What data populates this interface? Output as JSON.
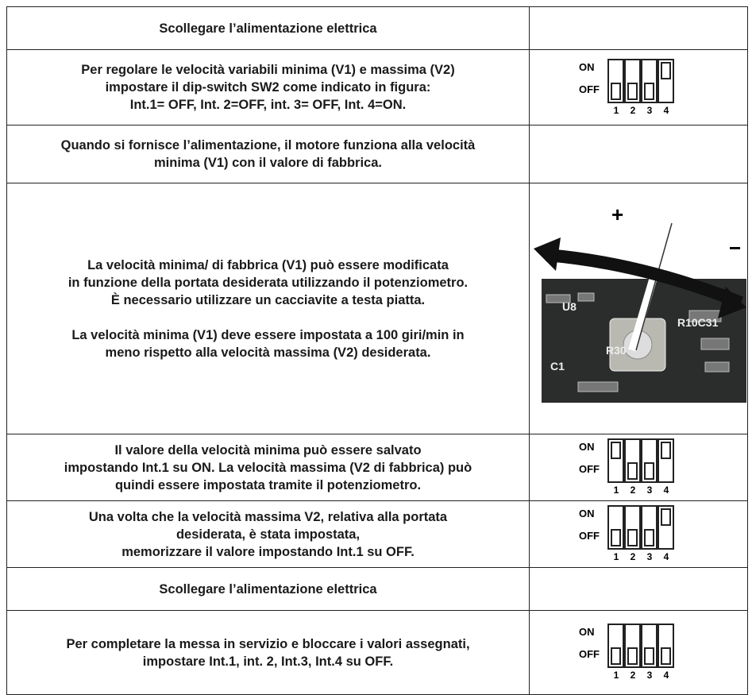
{
  "table": {
    "rows": [
      {
        "text": [
          [
            "Scollegare l’alimentazione elettrica"
          ]
        ]
      },
      {
        "text": [
          [
            "Per regolare le velocità variabili minima (V1) e massima (V2)",
            "impostare il dip-switch SW2 come indicato in figura:",
            "Int.1= OFF, Int. 2=OFF, int. 3= OFF, Int. 4=ON."
          ]
        ],
        "switch": {
          "on": "ON",
          "off": "OFF",
          "numbers": [
            "1",
            "2",
            "3",
            "4"
          ]
        }
      },
      {
        "text": [
          [
            "Quando si fornisce l’alimentazione, il motore funziona alla velocità",
            "minima (V1) con il valore di fabbrica."
          ]
        ]
      },
      {
        "text": [
          [
            "La velocità minima/ di fabbrica (V1) può essere modificata",
            "in funzione della portata desiderata utilizzando il potenziometro.",
            "È necessario utilizzare un cacciavite a testa piatta."
          ],
          [
            "La velocità minima (V1) deve essere impostata a 100 giri/min in",
            "meno rispetto alla velocità massima (V2) desiderata."
          ]
        ],
        "photo": {
          "plus": "+",
          "minus": "−",
          "labels": [
            "U8",
            "R30",
            "C1",
            "R10C31"
          ]
        }
      },
      {
        "text": [
          [
            "Il valore della velocità minima può essere salvato",
            "impostando Int.1 su ON. La velocità massima (V2 di fabbrica) può",
            "quindi essere impostata tramite il potenziometro."
          ]
        ],
        "switch": {
          "on": "ON",
          "off": "OFF",
          "numbers": [
            "1",
            "2",
            "3",
            "4"
          ]
        }
      },
      {
        "text": [
          [
            "Una volta che la velocità massima V2, relativa alla portata",
            "desiderata, è stata impostata,",
            "memorizzare il valore impostando Int.1 su OFF."
          ]
        ],
        "switch": {
          "on": "ON",
          "off": "OFF",
          "numbers": [
            "1",
            "2",
            "3",
            "4"
          ]
        }
      },
      {
        "text": [
          [
            "Scollegare l’alimentazione elettrica"
          ]
        ]
      },
      {
        "text": [
          [
            "Per completare la messa in servizio e bloccare i valori assegnati,",
            "impostare Int.1, int. 2, Int.3, Int.4 su OFF."
          ]
        ],
        "switch": {
          "on": "ON",
          "off": "OFF",
          "numbers": [
            "1",
            "2",
            "3",
            "4"
          ]
        }
      }
    ]
  }
}
